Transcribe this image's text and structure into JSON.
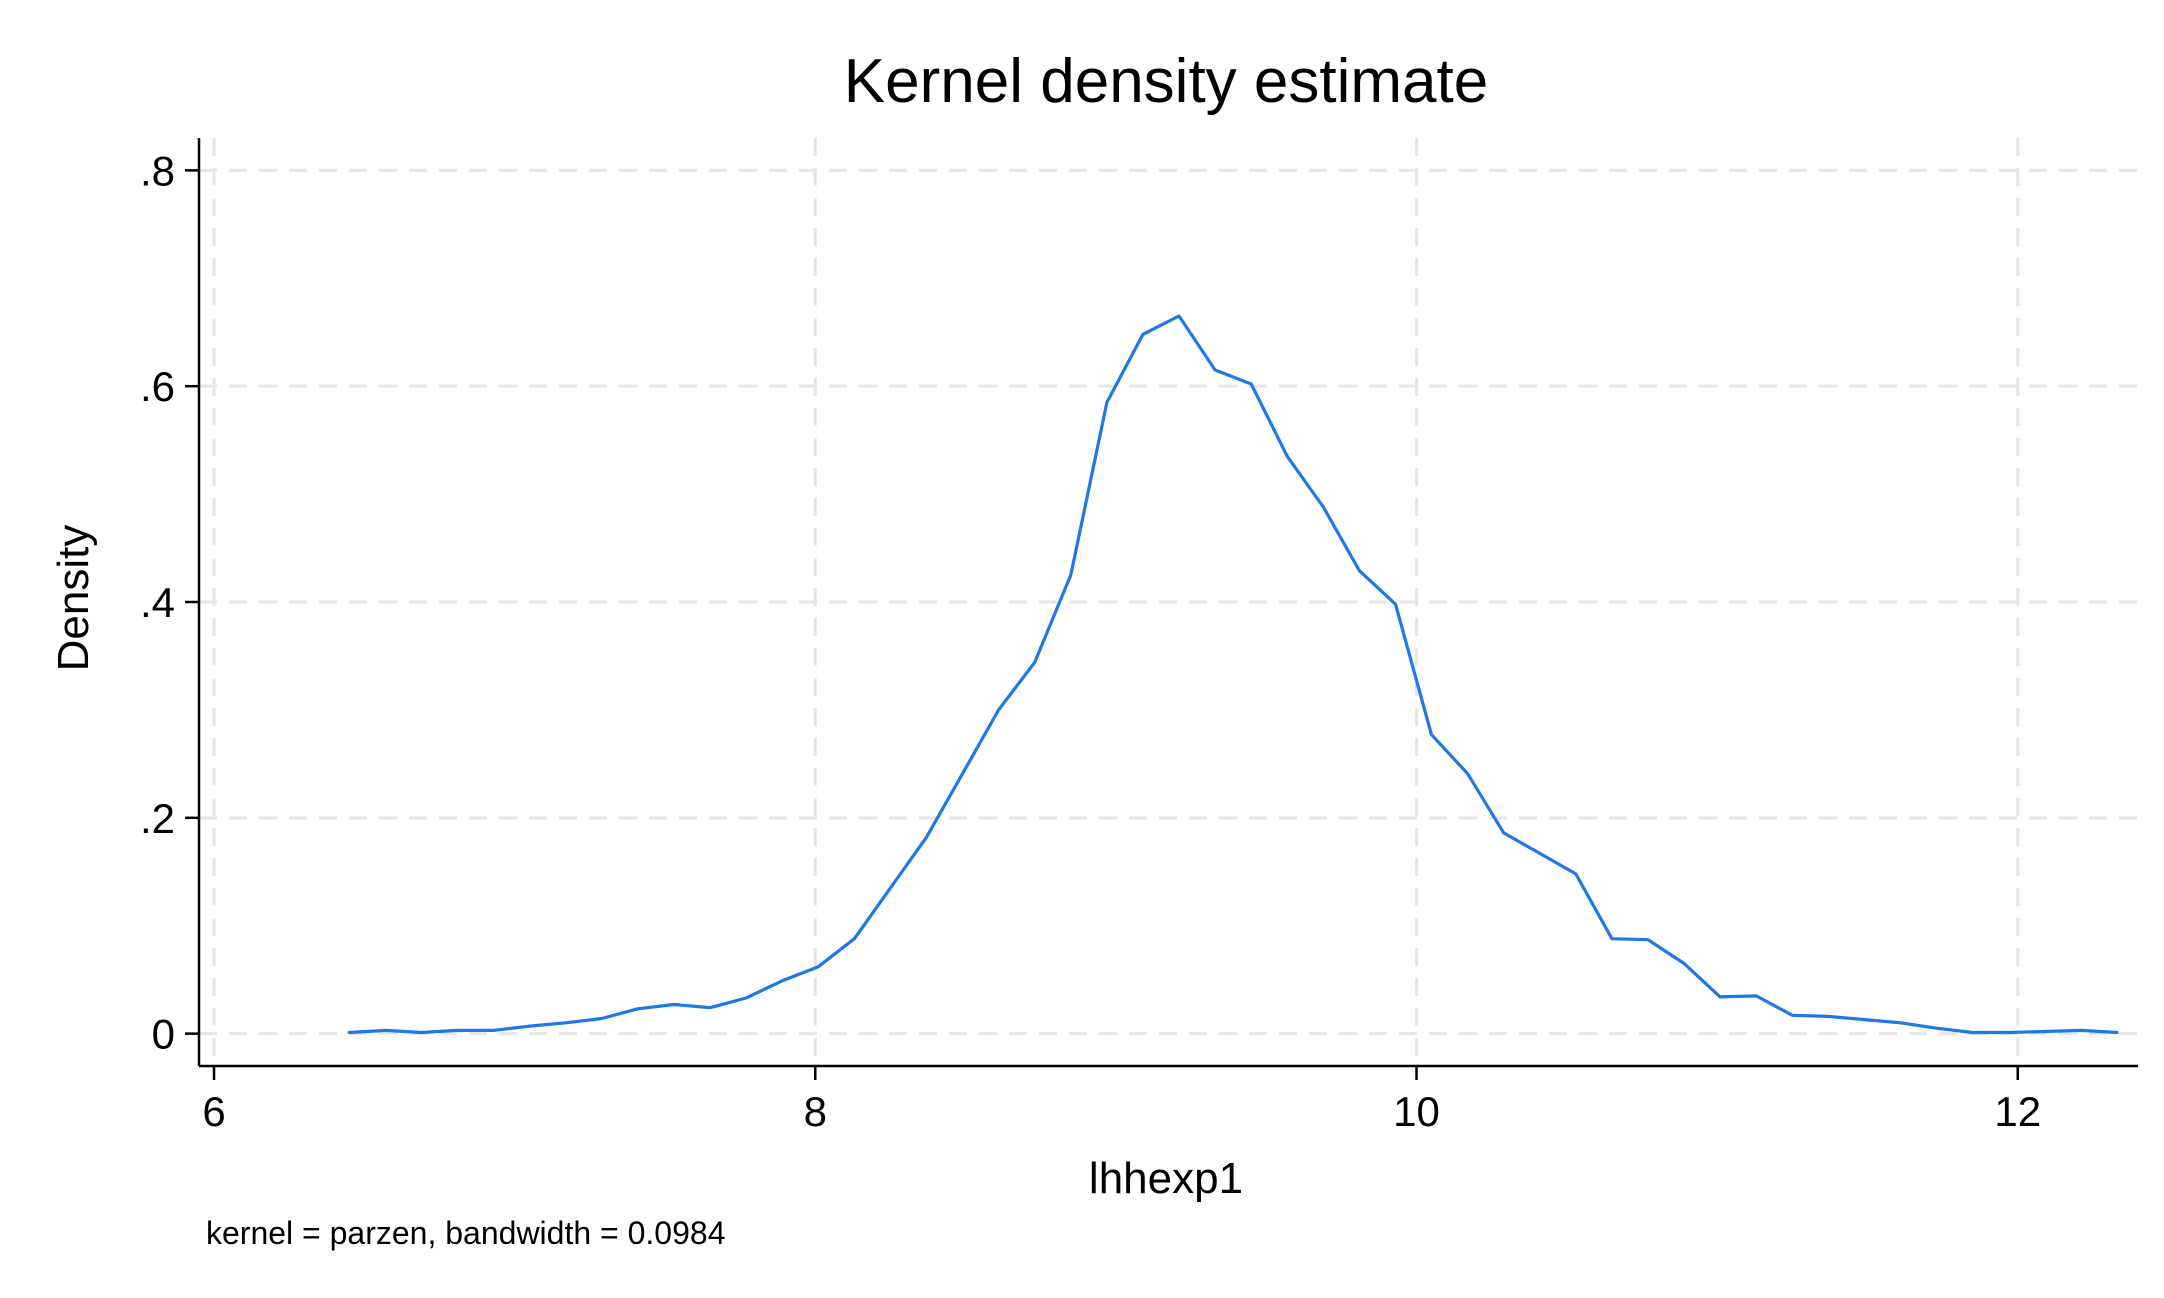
{
  "chart_data": {
    "type": "line",
    "title": "Kernel density estimate",
    "xlabel": "lhhexp1",
    "ylabel": "Density",
    "note": "kernel = parzen, bandwidth = 0.0984",
    "xlim": [
      5.95,
      12.4
    ],
    "ylim": [
      -0.03,
      0.83
    ],
    "x_ticks": [
      6,
      8,
      10,
      12
    ],
    "x_tick_labels": [
      "6",
      "8",
      "10",
      "12"
    ],
    "y_ticks": [
      0,
      0.2,
      0.4,
      0.6,
      0.8
    ],
    "y_tick_labels": [
      "0",
      ".2",
      ".4",
      ".6",
      ".8"
    ],
    "grid": true,
    "legend": "none",
    "colors": {
      "series": "#1f77e8",
      "grid": "#e6e6e6",
      "axis": "#000000"
    },
    "series": [
      {
        "x": [
          6.45,
          6.57,
          6.69,
          6.81,
          6.93,
          7.05,
          7.17,
          7.29,
          7.41,
          7.53,
          7.65,
          7.77,
          7.89,
          8.01,
          8.13,
          8.25,
          8.37,
          8.49,
          8.61,
          8.73,
          8.85,
          8.97,
          9.09,
          9.21,
          9.33,
          9.45,
          9.57,
          9.69,
          9.81,
          9.93,
          10.05,
          10.17,
          10.29,
          10.41,
          10.53,
          10.65,
          10.77,
          10.89,
          11.01,
          11.13,
          11.25,
          11.37,
          11.49,
          11.61,
          11.73,
          11.85,
          11.97,
          12.09,
          12.21,
          12.33
        ],
        "y": [
          0.001,
          0.003,
          0.001,
          0.003,
          0.003,
          0.007,
          0.01,
          0.014,
          0.023,
          0.027,
          0.024,
          0.033,
          0.049,
          0.062,
          0.088,
          0.135,
          0.182,
          0.241,
          0.3,
          0.344,
          0.425,
          0.585,
          0.648,
          0.665,
          0.615,
          0.602,
          0.535,
          0.488,
          0.429,
          0.398,
          0.277,
          0.241,
          0.186,
          0.167,
          0.148,
          0.088,
          0.087,
          0.065,
          0.034,
          0.035,
          0.017,
          0.016,
          0.013,
          0.01,
          0.005,
          0.001,
          0.001,
          0.002,
          0.003,
          0.001
        ]
      }
    ]
  }
}
